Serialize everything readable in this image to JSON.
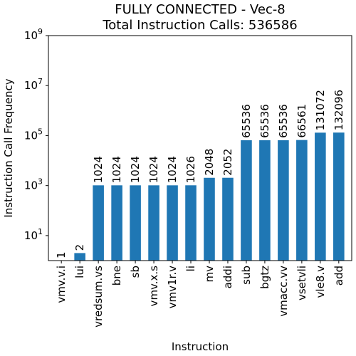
{
  "chart_data": {
    "type": "bar",
    "title": "FULLY CONNECTED - Vec-8",
    "subtitle": "Total Instruction Calls: 536586",
    "xlabel": "Instruction",
    "ylabel": "Instruction Call Frequency",
    "yscale": "log",
    "ylim": [
      1,
      1000000000
    ],
    "yticks": [
      {
        "exp": "1",
        "value": 10
      },
      {
        "exp": "3",
        "value": 1000
      },
      {
        "exp": "5",
        "value": 100000
      },
      {
        "exp": "7",
        "value": 10000000
      },
      {
        "exp": "9",
        "value": 1000000000
      }
    ],
    "grid": false,
    "bar_color": "#1f77b4",
    "categories": [
      "vmv.v.i",
      "lui",
      "vredsum.vs",
      "bne",
      "sb",
      "vmv.x.s",
      "vmv1r.v",
      "li",
      "mv",
      "addi",
      "sub",
      "bgtz",
      "vmacc.vv",
      "vsetvli",
      "vle8.v",
      "add"
    ],
    "values": [
      1,
      2,
      1024,
      1024,
      1024,
      1024,
      1024,
      1026,
      2048,
      2052,
      65536,
      65536,
      65536,
      66561,
      131072,
      132096
    ],
    "data_labels": [
      "1",
      "2",
      "1024",
      "1024",
      "1024",
      "1024",
      "1024",
      "1026",
      "2048",
      "2052",
      "65536",
      "65536",
      "65536",
      "66561",
      "131072",
      "132096"
    ]
  }
}
